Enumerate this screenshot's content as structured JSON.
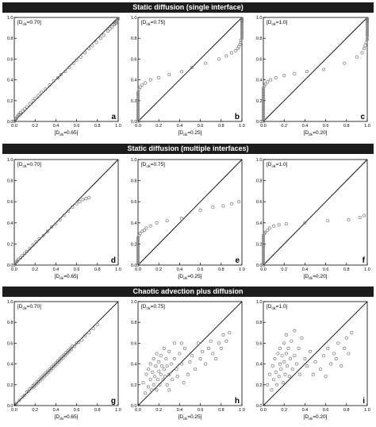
{
  "sections": [
    {
      "title": "Static diffusion (single interface)"
    },
    {
      "title": "Static diffusion (multiple interfaces)"
    },
    {
      "title": "Chaotic advection plus diffusion"
    }
  ],
  "axis_ticks": [
    "0.0",
    "0.2",
    "0.4",
    "0.6",
    "0.8",
    "1.0"
  ],
  "colors": {
    "banner": "#1c1c1c",
    "marker": "#7a7a7a",
    "line": "#000000"
  },
  "chart_data": [
    {
      "type": "scatter",
      "panel": "a",
      "ylabel": "[D_clk=0.70]",
      "xlabel": "[D_clk=0.65]",
      "xlim": [
        0,
        1
      ],
      "ylim": [
        0,
        1
      ],
      "reference_line": "y=x",
      "x": [
        0.0,
        0.01,
        0.02,
        0.03,
        0.04,
        0.05,
        0.06,
        0.08,
        0.1,
        0.12,
        0.15,
        0.18,
        0.2,
        0.23,
        0.26,
        0.3,
        0.34,
        0.38,
        0.42,
        0.45,
        0.49,
        0.53,
        0.57,
        0.6,
        0.64,
        0.68,
        0.72,
        0.75,
        0.79,
        0.83,
        0.86,
        0.9,
        0.92,
        0.94,
        0.96,
        0.97,
        0.98,
        0.985,
        0.99,
        0.995,
        1.0
      ],
      "y": [
        0.0,
        0.02,
        0.03,
        0.045,
        0.06,
        0.07,
        0.085,
        0.1,
        0.12,
        0.14,
        0.17,
        0.2,
        0.22,
        0.25,
        0.28,
        0.31,
        0.35,
        0.39,
        0.42,
        0.45,
        0.48,
        0.52,
        0.56,
        0.59,
        0.62,
        0.66,
        0.7,
        0.73,
        0.76,
        0.8,
        0.83,
        0.87,
        0.89,
        0.91,
        0.93,
        0.94,
        0.95,
        0.96,
        0.97,
        0.98,
        0.99
      ]
    },
    {
      "type": "scatter",
      "panel": "b",
      "ylabel": "[D_clk=0.75]",
      "xlabel": "[D_clk=0.25]",
      "xlim": [
        0,
        1
      ],
      "ylim": [
        0,
        1
      ],
      "reference_line": "y=x",
      "x": [
        0,
        0,
        0,
        0,
        0,
        0,
        0,
        0,
        0,
        0,
        0,
        0,
        0,
        0,
        0,
        0.01,
        0.02,
        0.04,
        0.07,
        0.12,
        0.2,
        0.3,
        0.42,
        0.52,
        0.65,
        0.78,
        0.85,
        0.9,
        0.94,
        0.96,
        0.97,
        0.98,
        0.99,
        0.99,
        1,
        1,
        1,
        1,
        1,
        1,
        1,
        1,
        1,
        1,
        1,
        1
      ],
      "y": [
        0,
        0.02,
        0.04,
        0.06,
        0.08,
        0.1,
        0.12,
        0.14,
        0.16,
        0.18,
        0.2,
        0.22,
        0.24,
        0.26,
        0.28,
        0.31,
        0.33,
        0.35,
        0.37,
        0.4,
        0.42,
        0.45,
        0.48,
        0.52,
        0.56,
        0.6,
        0.63,
        0.66,
        0.68,
        0.7,
        0.72,
        0.74,
        0.76,
        0.78,
        0.8,
        0.82,
        0.84,
        0.86,
        0.88,
        0.9,
        0.92,
        0.94,
        0.96,
        0.97,
        0.98,
        0.99
      ]
    },
    {
      "type": "scatter",
      "panel": "c",
      "ylabel": "[D_clk=1.0]",
      "xlabel": "[D_clk=0.20]",
      "xlim": [
        0,
        1
      ],
      "ylim": [
        0,
        1
      ],
      "reference_line": "y=x",
      "x": [
        0,
        0,
        0,
        0,
        0,
        0,
        0,
        0,
        0,
        0,
        0,
        0,
        0,
        0,
        0,
        0,
        0,
        0.01,
        0.02,
        0.04,
        0.07,
        0.12,
        0.2,
        0.3,
        0.42,
        0.58,
        0.78,
        0.9,
        0.95,
        0.97,
        0.98,
        0.99,
        1,
        1,
        1,
        1,
        1,
        1,
        1,
        1,
        1,
        1,
        1,
        1
      ],
      "y": [
        0,
        0.02,
        0.04,
        0.06,
        0.08,
        0.1,
        0.12,
        0.14,
        0.16,
        0.18,
        0.2,
        0.22,
        0.24,
        0.26,
        0.28,
        0.3,
        0.32,
        0.34,
        0.36,
        0.38,
        0.4,
        0.42,
        0.44,
        0.46,
        0.48,
        0.5,
        0.56,
        0.62,
        0.66,
        0.7,
        0.73,
        0.76,
        0.79,
        0.82,
        0.84,
        0.86,
        0.88,
        0.9,
        0.92,
        0.94,
        0.96,
        0.97,
        0.98,
        0.99
      ]
    },
    {
      "type": "scatter",
      "panel": "d",
      "ylabel": "[D_clk=0.70]",
      "xlabel": "[D_clk=0.65]",
      "xlim": [
        0,
        1
      ],
      "ylim": [
        0,
        1
      ],
      "reference_line": "y=x",
      "x": [
        0.0,
        0.01,
        0.02,
        0.03,
        0.04,
        0.06,
        0.08,
        0.1,
        0.12,
        0.15,
        0.18,
        0.21,
        0.24,
        0.28,
        0.32,
        0.36,
        0.4,
        0.44,
        0.48,
        0.52,
        0.56,
        0.6,
        0.63,
        0.66,
        0.69,
        0.72
      ],
      "y": [
        0.0,
        0.015,
        0.03,
        0.04,
        0.055,
        0.07,
        0.09,
        0.11,
        0.13,
        0.16,
        0.19,
        0.22,
        0.25,
        0.28,
        0.32,
        0.36,
        0.39,
        0.43,
        0.47,
        0.51,
        0.55,
        0.58,
        0.6,
        0.62,
        0.63,
        0.64
      ]
    },
    {
      "type": "scatter",
      "panel": "e",
      "ylabel": "[D_clk=0.75]",
      "xlabel": "[D_clk=0.25]",
      "xlim": [
        0,
        1
      ],
      "ylim": [
        0,
        1
      ],
      "reference_line": "y=x",
      "x": [
        0,
        0,
        0,
        0,
        0,
        0,
        0,
        0,
        0,
        0,
        0,
        0,
        0,
        0,
        0.01,
        0.02,
        0.04,
        0.06,
        0.08,
        0.12,
        0.18,
        0.28,
        0.42,
        0.6,
        0.72,
        0.82,
        0.9,
        0.97
      ],
      "y": [
        0,
        0.02,
        0.04,
        0.06,
        0.08,
        0.1,
        0.12,
        0.14,
        0.16,
        0.18,
        0.2,
        0.22,
        0.24,
        0.26,
        0.28,
        0.3,
        0.32,
        0.33,
        0.35,
        0.37,
        0.4,
        0.42,
        0.44,
        0.52,
        0.55,
        0.56,
        0.58,
        0.6
      ]
    },
    {
      "type": "scatter",
      "panel": "f",
      "ylabel": "[D_clk=1.0]",
      "xlabel": "[D_clk=0.20]",
      "xlim": [
        0,
        1
      ],
      "ylim": [
        0,
        1
      ],
      "reference_line": "y=x",
      "x": [
        0,
        0,
        0,
        0,
        0,
        0,
        0,
        0,
        0,
        0,
        0,
        0,
        0,
        0,
        0,
        0.01,
        0.02,
        0.04,
        0.06,
        0.1,
        0.15,
        0.22,
        0.4,
        0.62,
        0.82,
        0.93,
        0.97
      ],
      "y": [
        0,
        0.02,
        0.04,
        0.06,
        0.08,
        0.1,
        0.12,
        0.14,
        0.16,
        0.18,
        0.2,
        0.22,
        0.24,
        0.26,
        0.28,
        0.3,
        0.31,
        0.33,
        0.35,
        0.37,
        0.38,
        0.39,
        0.4,
        0.42,
        0.43,
        0.45,
        0.47
      ]
    },
    {
      "type": "scatter",
      "panel": "g",
      "ylabel": "[D_clk=0.70]",
      "xlabel": "[D_clk=0.65]",
      "xlim": [
        0,
        1
      ],
      "ylim": [
        0,
        1
      ],
      "reference_line": "y=x",
      "x": [
        0.02,
        0.05,
        0.08,
        0.1,
        0.12,
        0.14,
        0.15,
        0.17,
        0.18,
        0.19,
        0.2,
        0.21,
        0.22,
        0.23,
        0.24,
        0.25,
        0.26,
        0.27,
        0.28,
        0.29,
        0.3,
        0.31,
        0.32,
        0.33,
        0.34,
        0.35,
        0.36,
        0.37,
        0.38,
        0.39,
        0.4,
        0.41,
        0.42,
        0.43,
        0.44,
        0.45,
        0.46,
        0.47,
        0.48,
        0.49,
        0.5,
        0.51,
        0.52,
        0.53,
        0.54,
        0.55,
        0.56,
        0.58,
        0.6,
        0.62,
        0.65,
        0.68,
        0.72,
        0.76,
        0.8
      ],
      "y": [
        0.02,
        0.05,
        0.08,
        0.1,
        0.13,
        0.14,
        0.16,
        0.17,
        0.19,
        0.18,
        0.21,
        0.2,
        0.23,
        0.22,
        0.25,
        0.24,
        0.27,
        0.26,
        0.29,
        0.28,
        0.31,
        0.3,
        0.33,
        0.32,
        0.35,
        0.34,
        0.37,
        0.36,
        0.39,
        0.38,
        0.41,
        0.4,
        0.43,
        0.42,
        0.45,
        0.44,
        0.47,
        0.46,
        0.49,
        0.48,
        0.51,
        0.5,
        0.53,
        0.52,
        0.55,
        0.54,
        0.57,
        0.57,
        0.6,
        0.61,
        0.63,
        0.67,
        0.7,
        0.74,
        0.78
      ]
    },
    {
      "type": "scatter",
      "panel": "h",
      "ylabel": "[D_clk=0.75]",
      "xlabel": "[D_clk=0.25]",
      "xlim": [
        0,
        1
      ],
      "ylim": [
        0,
        1
      ],
      "reference_line": "y=x",
      "x": [
        0.05,
        0.07,
        0.08,
        0.1,
        0.1,
        0.12,
        0.12,
        0.13,
        0.14,
        0.15,
        0.15,
        0.16,
        0.17,
        0.18,
        0.18,
        0.19,
        0.2,
        0.2,
        0.21,
        0.22,
        0.22,
        0.23,
        0.24,
        0.25,
        0.25,
        0.26,
        0.27,
        0.28,
        0.28,
        0.3,
        0.3,
        0.32,
        0.33,
        0.35,
        0.35,
        0.37,
        0.38,
        0.4,
        0.42,
        0.44,
        0.45,
        0.48,
        0.5,
        0.52,
        0.55,
        0.58,
        0.6,
        0.62,
        0.65,
        0.68,
        0.7,
        0.72,
        0.75,
        0.78,
        0.8,
        0.82,
        0.85,
        0.88,
        0.3,
        0.42
      ],
      "y": [
        0.22,
        0.12,
        0.3,
        0.18,
        0.35,
        0.25,
        0.4,
        0.15,
        0.32,
        0.2,
        0.45,
        0.28,
        0.38,
        0.15,
        0.5,
        0.25,
        0.33,
        0.42,
        0.2,
        0.3,
        0.48,
        0.38,
        0.25,
        0.55,
        0.35,
        0.28,
        0.45,
        0.2,
        0.38,
        0.52,
        0.3,
        0.4,
        0.25,
        0.45,
        0.6,
        0.35,
        0.28,
        0.5,
        0.4,
        0.22,
        0.55,
        0.3,
        0.42,
        0.48,
        0.35,
        0.6,
        0.45,
        0.52,
        0.4,
        0.55,
        0.62,
        0.5,
        0.45,
        0.6,
        0.55,
        0.68,
        0.62,
        0.7,
        0.15,
        0.6
      ]
    },
    {
      "type": "scatter",
      "panel": "i",
      "ylabel": "[D_clk=1.0]",
      "xlabel": "[D_clk=0.20]",
      "xlim": [
        0,
        1
      ],
      "ylim": [
        0,
        1
      ],
      "reference_line": "y=x",
      "x": [
        0.04,
        0.06,
        0.08,
        0.09,
        0.1,
        0.11,
        0.12,
        0.13,
        0.14,
        0.15,
        0.16,
        0.16,
        0.17,
        0.18,
        0.19,
        0.2,
        0.2,
        0.21,
        0.22,
        0.23,
        0.24,
        0.25,
        0.26,
        0.27,
        0.28,
        0.3,
        0.32,
        0.34,
        0.35,
        0.37,
        0.4,
        0.42,
        0.45,
        0.48,
        0.5,
        0.55,
        0.58,
        0.6,
        0.62,
        0.65,
        0.68,
        0.7,
        0.72,
        0.75,
        0.78,
        0.8,
        0.82,
        0.85,
        0.3,
        0.22
      ],
      "y": [
        0.2,
        0.3,
        0.15,
        0.38,
        0.25,
        0.45,
        0.32,
        0.2,
        0.5,
        0.28,
        0.4,
        0.55,
        0.35,
        0.48,
        0.22,
        0.42,
        0.6,
        0.3,
        0.5,
        0.38,
        0.55,
        0.28,
        0.45,
        0.62,
        0.35,
        0.48,
        0.4,
        0.55,
        0.3,
        0.65,
        0.45,
        0.38,
        0.52,
        0.3,
        0.42,
        0.35,
        0.48,
        0.28,
        0.55,
        0.4,
        0.5,
        0.45,
        0.6,
        0.38,
        0.55,
        0.65,
        0.5,
        0.7,
        0.72,
        0.68
      ]
    }
  ]
}
